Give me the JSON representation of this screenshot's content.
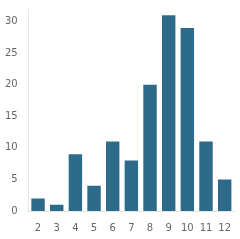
{
  "chart_data": {
    "type": "bar",
    "categories": [
      2,
      3,
      4,
      5,
      6,
      7,
      8,
      9,
      10,
      11,
      12
    ],
    "values": [
      2,
      1,
      9,
      4,
      11,
      8,
      20,
      31,
      29,
      11,
      5
    ],
    "color": "#2e6b8a",
    "ylim": [
      0,
      32
    ],
    "yticks": [
      0,
      5,
      10,
      15,
      20,
      25,
      30
    ],
    "grid": false
  }
}
